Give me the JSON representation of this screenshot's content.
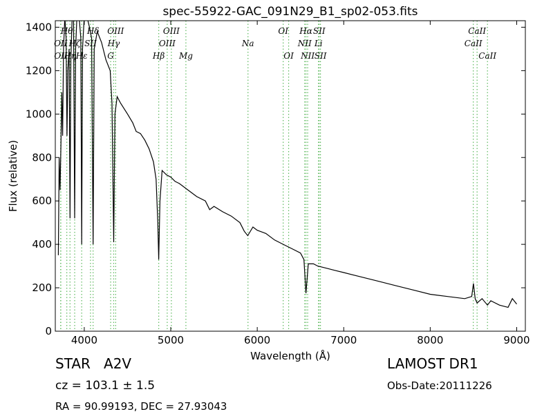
{
  "chart_data": {
    "type": "line",
    "title": "spec-55922-GAC_091N29_B1_sp02-053.fits",
    "xlabel": "Wavelength (Å)",
    "ylabel": "Flux (relative)",
    "xlim": [
      3665,
      9100
    ],
    "ylim": [
      0,
      1430
    ],
    "xticks": [
      4000,
      5000,
      6000,
      7000,
      8000,
      9000
    ],
    "yticks": [
      0,
      200,
      400,
      600,
      800,
      1000,
      1200,
      1400
    ],
    "color": "#000000",
    "line_color": "#5cb85c",
    "x": [
      3700,
      3710,
      3720,
      3730,
      3740,
      3750,
      3760,
      3775,
      3790,
      3800,
      3810,
      3825,
      3835,
      3845,
      3860,
      3875,
      3889,
      3900,
      3920,
      3940,
      3960,
      3970,
      3980,
      4000,
      4030,
      4060,
      4085,
      4102,
      4115,
      4150,
      4200,
      4250,
      4300,
      4320,
      4340,
      4355,
      4380,
      4420,
      4500,
      4560,
      4600,
      4650,
      4700,
      4750,
      4800,
      4830,
      4850,
      4861,
      4875,
      4900,
      4950,
      5000,
      5050,
      5100,
      5200,
      5300,
      5400,
      5450,
      5500,
      5600,
      5700,
      5800,
      5850,
      5890,
      5950,
      6000,
      6100,
      6200,
      6300,
      6400,
      6500,
      6540,
      6563,
      6590,
      6650,
      6700,
      6800,
      6900,
      7000,
      7200,
      7400,
      7600,
      7800,
      8000,
      8200,
      8400,
      8480,
      8500,
      8520,
      8542,
      8600,
      8662,
      8700,
      8800,
      8900,
      8950,
      9000
    ],
    "series": [
      {
        "name": "flux",
        "values": [
          350,
          800,
          650,
          850,
          1100,
          900,
          1300,
          1450,
          1350,
          900,
          1200,
          1300,
          520,
          1250,
          1450,
          1500,
          520,
          1300,
          1500,
          1450,
          1350,
          400,
          1300,
          1450,
          1450,
          1400,
          1350,
          400,
          1300,
          1380,
          1330,
          1250,
          1200,
          1050,
          410,
          1000,
          1080,
          1050,
          1000,
          960,
          920,
          910,
          880,
          840,
          780,
          700,
          500,
          330,
          600,
          740,
          720,
          710,
          690,
          680,
          650,
          620,
          600,
          560,
          575,
          550,
          530,
          500,
          460,
          440,
          480,
          465,
          450,
          420,
          400,
          380,
          360,
          330,
          175,
          310,
          310,
          300,
          290,
          280,
          270,
          250,
          230,
          210,
          190,
          170,
          160,
          150,
          160,
          220,
          150,
          130,
          150,
          120,
          140,
          120,
          110,
          150,
          125
        ]
      }
    ],
    "lines": [
      {
        "name": "Hθ",
        "x": 3798
      },
      {
        "name": "OII",
        "x": 3727
      },
      {
        "name": "OII",
        "x": 3729
      },
      {
        "name": "Hζ",
        "x": 3889
      },
      {
        "name": "Hη",
        "x": 3835
      },
      {
        "name": "Hε",
        "x": 3970
      },
      {
        "name": "SII",
        "x": 4072
      },
      {
        "name": "Hδ",
        "x": 4102
      },
      {
        "name": "OIII",
        "x": 4363
      },
      {
        "name": "Hγ",
        "x": 4340
      },
      {
        "name": "G",
        "x": 4305
      },
      {
        "name": "OIII",
        "x": 5007
      },
      {
        "name": "OIII",
        "x": 4959
      },
      {
        "name": "Hβ",
        "x": 4861
      },
      {
        "name": "Mg",
        "x": 5175
      },
      {
        "name": "Na",
        "x": 5893
      },
      {
        "name": "OI",
        "x": 6300
      },
      {
        "name": "OI",
        "x": 6363
      },
      {
        "name": "Hα",
        "x": 6563
      },
      {
        "name": "NII",
        "x": 6548
      },
      {
        "name": "NII",
        "x": 6583
      },
      {
        "name": "SII",
        "x": 6716
      },
      {
        "name": "Li",
        "x": 6708
      },
      {
        "name": "SII",
        "x": 6731
      },
      {
        "name": "CaII",
        "x": 8542
      },
      {
        "name": "CaII",
        "x": 8498
      },
      {
        "name": "CaII",
        "x": 8662
      }
    ],
    "info": {
      "class": "STAR   A2V",
      "cz": "cz = 103.1 ± 1.5",
      "coords": "RA = 90.99193, DEC = 27.93043",
      "survey": "LAMOST DR1",
      "date": "Obs-Date:20111226"
    }
  }
}
